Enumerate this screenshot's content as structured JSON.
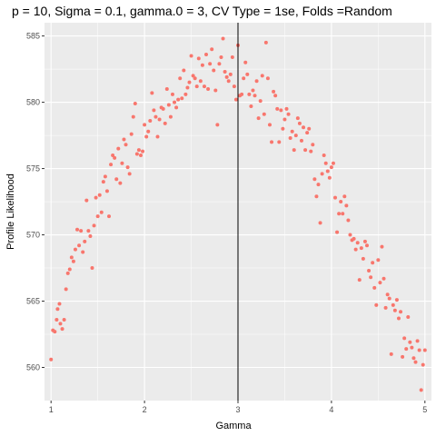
{
  "colors": {
    "panel_background": "#ebebeb",
    "grid_major": "#ffffff",
    "point": "#f8766d",
    "reference_line": "#000000",
    "tick": "#333333"
  },
  "chart_data": {
    "type": "scatter",
    "title": "p = 10, Sigma = 0.1, gamma.0 = 3, CV Type = 1se, Folds =Random",
    "xlabel": "Gamma",
    "ylabel": "Profile Likelihood",
    "xlim": [
      0.93,
      5.07
    ],
    "ylim": [
      557.5,
      586
    ],
    "xticks": [
      1,
      2,
      3,
      4,
      5
    ],
    "yticks": [
      560,
      565,
      570,
      575,
      580,
      585
    ],
    "grid": true,
    "legend": "none",
    "vline": 3,
    "series": [
      {
        "points": [
          [
            1.0,
            560.6
          ],
          [
            1.02,
            562.8
          ],
          [
            1.04,
            562.7
          ],
          [
            1.06,
            563.6
          ],
          [
            1.07,
            564.4
          ],
          [
            1.09,
            564.8
          ],
          [
            1.1,
            563.3
          ],
          [
            1.12,
            562.9
          ],
          [
            1.14,
            563.6
          ],
          [
            1.16,
            565.9
          ],
          [
            1.18,
            567.1
          ],
          [
            1.2,
            567.4
          ],
          [
            1.22,
            568.3
          ],
          [
            1.24,
            568.0
          ],
          [
            1.26,
            568.9
          ],
          [
            1.28,
            570.4
          ],
          [
            1.3,
            569.2
          ],
          [
            1.32,
            570.3
          ],
          [
            1.34,
            568.7
          ],
          [
            1.36,
            569.5
          ],
          [
            1.38,
            572.6
          ],
          [
            1.4,
            570.3
          ],
          [
            1.42,
            569.9
          ],
          [
            1.44,
            567.5
          ],
          [
            1.46,
            570.7
          ],
          [
            1.48,
            572.8
          ],
          [
            1.5,
            571.4
          ],
          [
            1.52,
            573.0
          ],
          [
            1.54,
            571.7
          ],
          [
            1.56,
            574.0
          ],
          [
            1.58,
            574.4
          ],
          [
            1.6,
            573.3
          ],
          [
            1.62,
            571.4
          ],
          [
            1.64,
            575.3
          ],
          [
            1.66,
            576.0
          ],
          [
            1.68,
            575.8
          ],
          [
            1.7,
            574.2
          ],
          [
            1.72,
            576.5
          ],
          [
            1.74,
            573.9
          ],
          [
            1.76,
            575.4
          ],
          [
            1.78,
            577.2
          ],
          [
            1.8,
            576.8
          ],
          [
            1.82,
            575.1
          ],
          [
            1.84,
            574.6
          ],
          [
            1.86,
            577.6
          ],
          [
            1.88,
            578.9
          ],
          [
            1.9,
            579.9
          ],
          [
            1.92,
            576.1
          ],
          [
            1.94,
            576.4
          ],
          [
            1.96,
            576.0
          ],
          [
            1.98,
            576.3
          ],
          [
            2.0,
            578.3
          ],
          [
            2.02,
            577.4
          ],
          [
            2.04,
            577.8
          ],
          [
            2.06,
            578.6
          ],
          [
            2.08,
            580.7
          ],
          [
            2.1,
            579.4
          ],
          [
            2.12,
            578.9
          ],
          [
            2.14,
            577.4
          ],
          [
            2.16,
            578.7
          ],
          [
            2.18,
            579.6
          ],
          [
            2.2,
            579.5
          ],
          [
            2.22,
            578.4
          ],
          [
            2.24,
            581.0
          ],
          [
            2.26,
            579.8
          ],
          [
            2.28,
            578.9
          ],
          [
            2.3,
            580.6
          ],
          [
            2.32,
            580.0
          ],
          [
            2.34,
            579.6
          ],
          [
            2.36,
            580.2
          ],
          [
            2.38,
            581.8
          ],
          [
            2.4,
            580.3
          ],
          [
            2.42,
            582.4
          ],
          [
            2.44,
            580.6
          ],
          [
            2.46,
            581.1
          ],
          [
            2.48,
            581.5
          ],
          [
            2.5,
            583.5
          ],
          [
            2.52,
            582.0
          ],
          [
            2.54,
            581.8
          ],
          [
            2.56,
            581.2
          ],
          [
            2.58,
            583.3
          ],
          [
            2.6,
            581.6
          ],
          [
            2.62,
            582.8
          ],
          [
            2.64,
            581.2
          ],
          [
            2.66,
            583.6
          ],
          [
            2.68,
            581.0
          ],
          [
            2.7,
            582.9
          ],
          [
            2.72,
            584.0
          ],
          [
            2.74,
            582.4
          ],
          [
            2.76,
            580.9
          ],
          [
            2.78,
            578.3
          ],
          [
            2.8,
            582.9
          ],
          [
            2.82,
            583.4
          ],
          [
            2.84,
            584.8
          ],
          [
            2.86,
            582.3
          ],
          [
            2.88,
            581.9
          ],
          [
            2.9,
            581.6
          ],
          [
            2.92,
            582.1
          ],
          [
            2.94,
            583.4
          ],
          [
            2.96,
            581.2
          ],
          [
            2.98,
            580.2
          ],
          [
            3.0,
            584.3
          ],
          [
            3.02,
            580.5
          ],
          [
            3.04,
            580.6
          ],
          [
            3.06,
            581.8
          ],
          [
            3.08,
            583.0
          ],
          [
            3.1,
            582.1
          ],
          [
            3.12,
            580.6
          ],
          [
            3.14,
            579.7
          ],
          [
            3.16,
            580.9
          ],
          [
            3.18,
            580.5
          ],
          [
            3.2,
            581.6
          ],
          [
            3.22,
            578.8
          ],
          [
            3.24,
            580.1
          ],
          [
            3.26,
            582.0
          ],
          [
            3.28,
            579.1
          ],
          [
            3.3,
            584.5
          ],
          [
            3.32,
            581.8
          ],
          [
            3.34,
            578.3
          ],
          [
            3.36,
            577.0
          ],
          [
            3.38,
            580.8
          ],
          [
            3.4,
            580.5
          ],
          [
            3.42,
            579.5
          ],
          [
            3.44,
            577.0
          ],
          [
            3.46,
            579.4
          ],
          [
            3.48,
            578.0
          ],
          [
            3.5,
            578.7
          ],
          [
            3.52,
            579.5
          ],
          [
            3.54,
            579.1
          ],
          [
            3.56,
            577.3
          ],
          [
            3.58,
            577.8
          ],
          [
            3.6,
            576.4
          ],
          [
            3.62,
            577.5
          ],
          [
            3.64,
            578.8
          ],
          [
            3.66,
            578.4
          ],
          [
            3.68,
            577.1
          ],
          [
            3.7,
            578.1
          ],
          [
            3.72,
            576.4
          ],
          [
            3.74,
            577.7
          ],
          [
            3.76,
            578.0
          ],
          [
            3.78,
            576.3
          ],
          [
            3.8,
            576.8
          ],
          [
            3.82,
            574.2
          ],
          [
            3.84,
            572.9
          ],
          [
            3.86,
            573.8
          ],
          [
            3.88,
            570.9
          ],
          [
            3.9,
            574.6
          ],
          [
            3.92,
            576.0
          ],
          [
            3.94,
            575.4
          ],
          [
            3.96,
            574.8
          ],
          [
            3.98,
            574.3
          ],
          [
            4.0,
            575.1
          ],
          [
            4.02,
            575.4
          ],
          [
            4.04,
            572.8
          ],
          [
            4.06,
            570.2
          ],
          [
            4.08,
            571.6
          ],
          [
            4.1,
            572.5
          ],
          [
            4.12,
            571.6
          ],
          [
            4.14,
            572.9
          ],
          [
            4.16,
            572.2
          ],
          [
            4.18,
            571.1
          ],
          [
            4.2,
            570.0
          ],
          [
            4.22,
            569.6
          ],
          [
            4.24,
            569.7
          ],
          [
            4.26,
            568.9
          ],
          [
            4.28,
            569.4
          ],
          [
            4.3,
            566.6
          ],
          [
            4.32,
            569.0
          ],
          [
            4.34,
            568.2
          ],
          [
            4.36,
            569.5
          ],
          [
            4.38,
            569.2
          ],
          [
            4.4,
            567.3
          ],
          [
            4.42,
            566.8
          ],
          [
            4.44,
            567.9
          ],
          [
            4.46,
            566.0
          ],
          [
            4.48,
            564.7
          ],
          [
            4.5,
            568.1
          ],
          [
            4.52,
            566.4
          ],
          [
            4.54,
            569.1
          ],
          [
            4.56,
            566.7
          ],
          [
            4.58,
            564.5
          ],
          [
            4.6,
            565.5
          ],
          [
            4.62,
            565.2
          ],
          [
            4.64,
            561.0
          ],
          [
            4.66,
            564.7
          ],
          [
            4.68,
            564.3
          ],
          [
            4.7,
            565.1
          ],
          [
            4.72,
            563.7
          ],
          [
            4.74,
            564.2
          ],
          [
            4.76,
            560.8
          ],
          [
            4.78,
            562.2
          ],
          [
            4.8,
            561.4
          ],
          [
            4.82,
            563.8
          ],
          [
            4.84,
            561.9
          ],
          [
            4.86,
            561.5
          ],
          [
            4.88,
            560.7
          ],
          [
            4.9,
            560.4
          ],
          [
            4.92,
            562.0
          ],
          [
            4.94,
            561.3
          ],
          [
            4.96,
            558.3
          ],
          [
            4.98,
            560.2
          ],
          [
            5.0,
            561.3
          ]
        ]
      }
    ]
  }
}
